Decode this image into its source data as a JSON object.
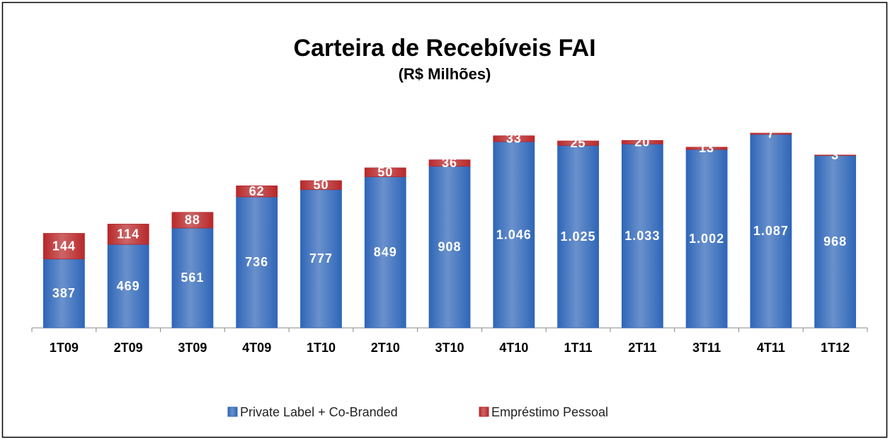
{
  "chart_data": {
    "type": "stacked_bar",
    "title": "Carteira de Recebíveis FAI",
    "subtitle": "(R$ Milhões)",
    "categories": [
      "1T09",
      "2T09",
      "3T09",
      "4T09",
      "1T10",
      "2T10",
      "3T10",
      "4T10",
      "1T11",
      "2T11",
      "3T11",
      "4T11",
      "1T12"
    ],
    "series": [
      {
        "name": "Private Label + Co-Branded",
        "color": "#2f66b8",
        "values": [
          387,
          469,
          561,
          736,
          777,
          849,
          908,
          1046,
          1025,
          1033,
          1002,
          1087,
          968
        ],
        "value_labels": [
          "387",
          "469",
          "561",
          "736",
          "777",
          "849",
          "908",
          "1.046",
          "1.025",
          "1.033",
          "1.002",
          "1.087",
          "968"
        ]
      },
      {
        "name": "Empréstimo Pessoal",
        "color": "#b8282a",
        "values": [
          144,
          114,
          88,
          62,
          50,
          50,
          36,
          33,
          25,
          20,
          13,
          7,
          3
        ],
        "value_labels": [
          "144",
          "114",
          "88",
          "62",
          "50",
          "50",
          "36",
          "33",
          "25",
          "20",
          "13",
          "7",
          "3"
        ]
      }
    ],
    "legend": "bottom"
  }
}
